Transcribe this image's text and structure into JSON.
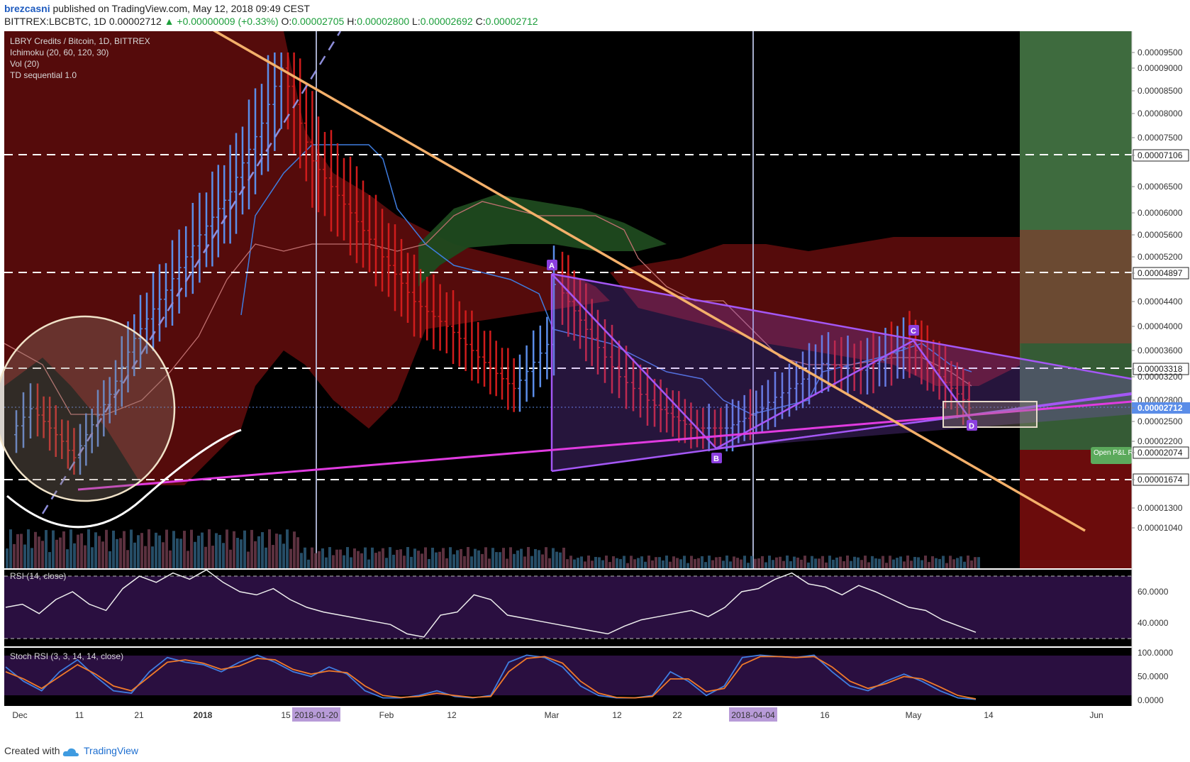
{
  "header": {
    "author": "brezcasni",
    "published": "published on TradingView.com, May 12, 2018 09:49 CEST",
    "symbol": "BITTREX:LBCBTC, 1D",
    "last": "0.00002712",
    "change": "▲ +0.00000009 (+0.33%)",
    "o_label": "O:",
    "o_value": "0.00002705",
    "h_label": "H:",
    "h_value": "0.00002800",
    "l_label": "L:",
    "l_value": "0.00002692",
    "c_label": "C:",
    "c_value": "0.00002712"
  },
  "legend": {
    "title": "LBRY Credits / Bitcoin, 1D, BITTREX",
    "ichimoku": "Ichimoku (20, 60, 120, 30)",
    "vol": "Vol (20)",
    "td": "TD sequential 1.0"
  },
  "rsi_label": "RSI (14, close)",
  "stoch_label": "Stoch RSI (3, 3, 14, 14, close)",
  "footer": {
    "created": "Created with",
    "brand": "TradingView"
  },
  "colors": {
    "background": "#000000",
    "up_bar": "#5b8de8",
    "down_bar": "#d01c1c",
    "cloud_bear": "#5a0c0c",
    "cloud_bull": "#1f4a1f",
    "downtrend_line": "#f4b06a",
    "triangle": "#9b4ee6",
    "support_line": "#e03be0",
    "rsi_panel": "#2a0f40"
  },
  "chart_data": [
    {
      "type": "line",
      "title": "LBRY Credits / Bitcoin, 1D, BITTREX",
      "ylim": [
        1e-05,
        0.0001
      ],
      "y_ticks": [
        "0.00009500",
        "0.00009000",
        "0.00008500",
        "0.00008000",
        "0.00007500",
        "0.00007106",
        "0.00006500",
        "0.00006000",
        "0.00005600",
        "0.00005200",
        "0.00004897",
        "0.00004400",
        "0.00004000",
        "0.00003600",
        "0.00003318",
        "0.00003200",
        "0.00002800",
        "0.00002712",
        "0.00002500",
        "0.00002200",
        "0.00002074",
        "0.00001674",
        "0.00001300",
        "0.00001040"
      ],
      "x_ticks": [
        "Dec",
        "11",
        "21",
        "2018",
        "15",
        "2018-01-20",
        "Feb",
        "12",
        "Mar",
        "12",
        "22",
        "2018-04-04",
        "16",
        "May",
        "14",
        "Jun"
      ],
      "last_price": "0.00002712",
      "horizontal_levels": [
        "0.00007106",
        "0.00004897",
        "0.00003318",
        "0.00001674"
      ],
      "pattern_points": [
        "A",
        "B",
        "C",
        "D"
      ],
      "position_label": "Open P&L Risk",
      "position_level": "0.00002074",
      "position_level_2": "0.00002074",
      "price_series": [
        {
          "d": "Dec 1",
          "v": 2.3e-05
        },
        {
          "d": "Dec 6",
          "v": 2.7e-05
        },
        {
          "d": "Dec 11",
          "v": 2e-05
        },
        {
          "d": "Dec 16",
          "v": 2.9e-05
        },
        {
          "d": "Dec 21",
          "v": 3.8e-05
        },
        {
          "d": "Dec 26",
          "v": 4.6e-05
        },
        {
          "d": "Jan 1",
          "v": 5.6e-05
        },
        {
          "d": "Jan 6",
          "v": 6.4e-05
        },
        {
          "d": "Jan 11",
          "v": 7.8e-05
        },
        {
          "d": "Jan 15",
          "v": 9e-05
        },
        {
          "d": "Jan 20",
          "v": 7e-05
        },
        {
          "d": "Jan 25",
          "v": 6e-05
        },
        {
          "d": "Feb 1",
          "v": 5.2e-05
        },
        {
          "d": "Feb 6",
          "v": 4.4e-05
        },
        {
          "d": "Feb 12",
          "v": 4e-05
        },
        {
          "d": "Feb 18",
          "v": 3.5e-05
        },
        {
          "d": "Feb 24",
          "v": 3e-05
        },
        {
          "d": "Mar 1",
          "v": 3.7e-05
        },
        {
          "d": "Mar 3",
          "v": 4.7e-05
        },
        {
          "d": "Mar 8",
          "v": 3.8e-05
        },
        {
          "d": "Mar 14",
          "v": 3.2e-05
        },
        {
          "d": "Mar 20",
          "v": 2.8e-05
        },
        {
          "d": "Mar 27",
          "v": 2.4e-05
        },
        {
          "d": "Apr 1",
          "v": 2.4e-05
        },
        {
          "d": "Apr 6",
          "v": 2.7e-05
        },
        {
          "d": "Apr 12",
          "v": 3e-05
        },
        {
          "d": "Apr 18",
          "v": 3.4e-05
        },
        {
          "d": "Apr 24",
          "v": 3.3e-05
        },
        {
          "d": "May 1",
          "v": 3.7e-05
        },
        {
          "d": "May 6",
          "v": 3.2e-05
        },
        {
          "d": "May 11",
          "v": 2.71e-05
        }
      ]
    },
    {
      "type": "line",
      "title": "RSI (14, close)",
      "ylim": [
        25,
        75
      ],
      "y_ticks": [
        "60.0000",
        "40.0000"
      ],
      "values": [
        50,
        52,
        46,
        55,
        60,
        52,
        48,
        62,
        70,
        66,
        72,
        68,
        74,
        66,
        60,
        58,
        62,
        55,
        50,
        47,
        45,
        43,
        41,
        39,
        33,
        31,
        45,
        47,
        58,
        55,
        45,
        43,
        41,
        39,
        37,
        35,
        33,
        38,
        42,
        44,
        46,
        48,
        44,
        50,
        60,
        62,
        68,
        72,
        65,
        63,
        58,
        64,
        60,
        55,
        50,
        48,
        42,
        38,
        34
      ]
    },
    {
      "type": "line",
      "title": "Stoch RSI (3, 3, 14, 14, close)",
      "ylim": [
        0,
        100
      ],
      "y_ticks": [
        "100.0000",
        "50.0000",
        "0.0000"
      ],
      "series": [
        {
          "values": [
            70,
            40,
            20,
            60,
            85,
            50,
            20,
            15,
            60,
            90,
            80,
            75,
            60,
            80,
            95,
            80,
            60,
            50,
            70,
            55,
            20,
            5,
            5,
            10,
            20,
            8,
            5,
            10,
            80,
            95,
            90,
            70,
            30,
            10,
            5,
            5,
            10,
            60,
            40,
            10,
            30,
            90,
            95,
            92,
            90,
            95,
            60,
            30,
            20,
            40,
            55,
            40,
            20,
            5,
            2
          ]
        },
        {
          "values": [
            60,
            45,
            25,
            50,
            75,
            55,
            30,
            20,
            50,
            80,
            85,
            78,
            65,
            72,
            88,
            85,
            65,
            55,
            62,
            58,
            30,
            10,
            6,
            8,
            15,
            10,
            6,
            8,
            60,
            88,
            92,
            78,
            40,
            15,
            6,
            5,
            8,
            45,
            45,
            18,
            25,
            75,
            92,
            92,
            90,
            92,
            70,
            40,
            25,
            35,
            50,
            45,
            28,
            10,
            3
          ]
        }
      ]
    }
  ]
}
